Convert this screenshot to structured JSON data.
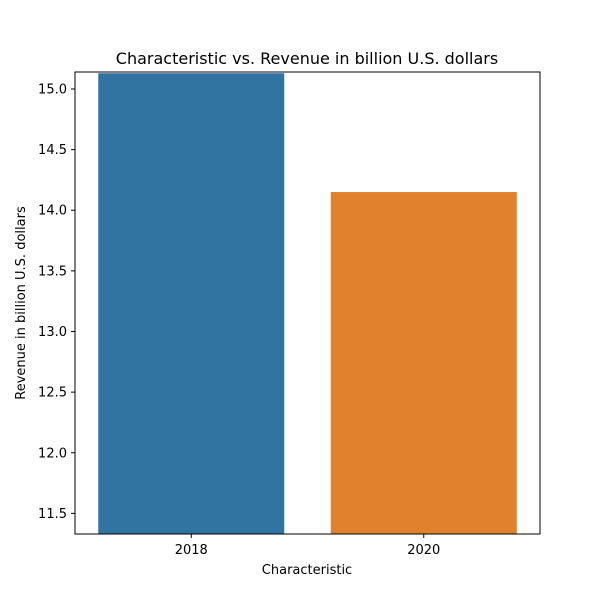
{
  "chart_data": {
    "type": "bar",
    "title": "Characteristic vs. Revenue in billion U.S. dollars",
    "xlabel": "Characteristic",
    "ylabel": "Revenue in billion U.S. dollars",
    "categories": [
      "2018",
      "2020"
    ],
    "values": [
      15.13,
      14.15
    ],
    "colors": [
      "#3274a1",
      "#e1812c"
    ],
    "ylim": [
      11.33,
      15.14
    ],
    "yticks": [
      {
        "value": 11.5,
        "label": "11.5"
      },
      {
        "value": 12.0,
        "label": "12.0"
      },
      {
        "value": 12.5,
        "label": "12.5"
      },
      {
        "value": 13.0,
        "label": "13.0"
      },
      {
        "value": 13.5,
        "label": "13.5"
      },
      {
        "value": 14.0,
        "label": "14.0"
      },
      {
        "value": 14.5,
        "label": "14.5"
      },
      {
        "value": 15.0,
        "label": "15.0"
      }
    ],
    "grid": false,
    "legend": "none"
  }
}
